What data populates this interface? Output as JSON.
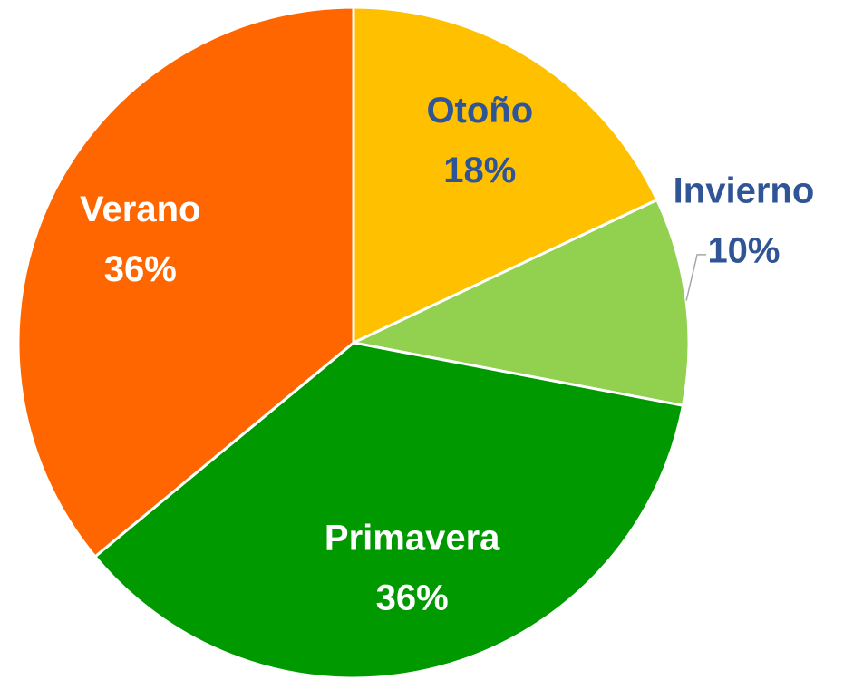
{
  "chart_data": {
    "type": "pie",
    "categories": [
      "Otoño",
      "Invierno",
      "Primavera",
      "Verano"
    ],
    "values": [
      18,
      10,
      36,
      36
    ],
    "value_labels": [
      "18%",
      "10%",
      "36%",
      "36%"
    ],
    "colors": [
      "#FFC000",
      "#92D050",
      "#009900",
      "#FF6600"
    ],
    "label_colors": [
      "#2F5597",
      "#2F5597",
      "#FFFFFF",
      "#FFFFFF"
    ]
  }
}
